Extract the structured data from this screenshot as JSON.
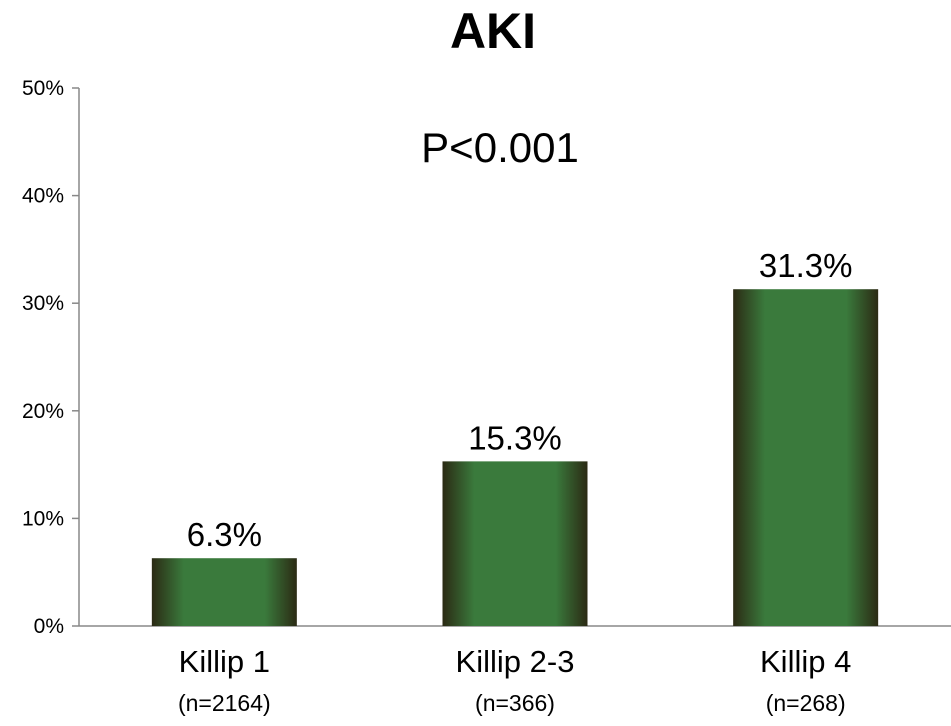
{
  "chart_data": {
    "type": "bar",
    "title": "AKI",
    "annotation": "P<0.001",
    "categories": [
      "Killip 1",
      "Killip 2-3",
      "Killip 4"
    ],
    "category_sublabels": [
      "(n=2164)",
      "(n=366)",
      "(n=268)"
    ],
    "values": [
      6.3,
      15.3,
      31.3
    ],
    "value_labels": [
      "6.3%",
      "15.3%",
      "31.3%"
    ],
    "ylim": [
      0,
      50
    ],
    "yticks": [
      0,
      10,
      20,
      30,
      40,
      50
    ],
    "ytick_labels": [
      "0%",
      "10%",
      "20%",
      "30%",
      "40%",
      "50%"
    ],
    "xlabel": "",
    "ylabel": "",
    "grid": false,
    "legend": "none",
    "colors": {
      "bar_center": "#3a7a3c",
      "bar_edge": "#2b2a14",
      "axis": "#888888"
    }
  }
}
